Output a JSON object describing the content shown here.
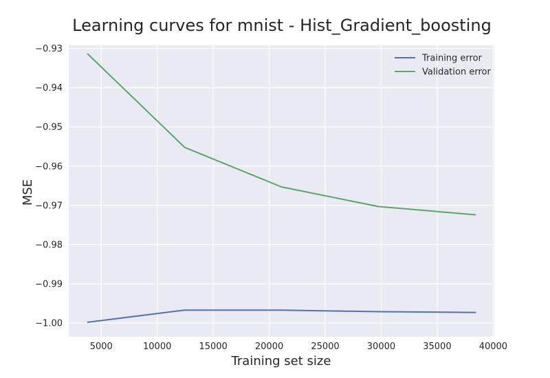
{
  "chart_data": {
    "type": "line",
    "title": "Learning curves for mnist - Hist_Gradient_boosting",
    "xlabel": "Training set size",
    "ylabel": "MSE",
    "xlim": [
      2100,
      40100
    ],
    "ylim": [
      -1.0035,
      -0.9292
    ],
    "x_ticks": [
      5000,
      10000,
      15000,
      20000,
      25000,
      30000,
      35000,
      40000
    ],
    "x_tick_labels": [
      "5000",
      "10000",
      "15000",
      "20000",
      "25000",
      "30000",
      "35000",
      "40000"
    ],
    "y_ticks": [
      -0.93,
      -0.94,
      -0.95,
      -0.96,
      -0.97,
      -0.98,
      -0.99,
      -1.0
    ],
    "y_tick_labels": [
      "−0.93",
      "−0.94",
      "−0.95",
      "−0.96",
      "−0.97",
      "−0.98",
      "−0.99",
      "−1.00"
    ],
    "grid": true,
    "legend_position": "top-right",
    "x": [
      3800,
      12450,
      21100,
      29750,
      38400
    ],
    "series": [
      {
        "name": "Training error",
        "color": "#4c72b0",
        "values": [
          -0.9998,
          -0.9967,
          -0.9967,
          -0.9971,
          -0.9973
        ]
      },
      {
        "name": "Validation error",
        "color": "#55a868",
        "values": [
          -0.9314,
          -0.9552,
          -0.9653,
          -0.9703,
          -0.9724
        ]
      }
    ]
  }
}
